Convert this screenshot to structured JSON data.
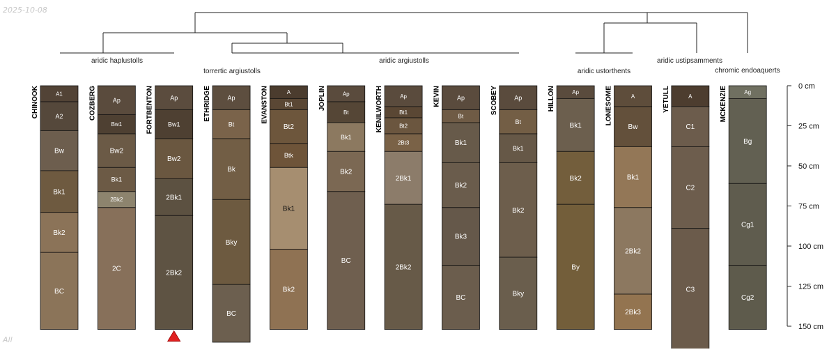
{
  "date_label": "2025-10-08",
  "corner_label": "All",
  "depth_unit": "cm",
  "depth_ticks": [
    0,
    25,
    50,
    75,
    100,
    125,
    150
  ],
  "colors": {
    "line": "#222222",
    "marker": "#e02020",
    "text_light": "#ffffff",
    "text_dark": "#111111"
  },
  "group_labels": [
    "aridic haplustolls",
    "torrertic argiustolls",
    "aridic argiustolls",
    "aridic ustorthents",
    "aridic ustipsamments",
    "chromic endoaquerts"
  ],
  "marker_profile": "FORTBENTON",
  "profiles": [
    {
      "name": "CHINOOK",
      "horizons": [
        {
          "name": "A1",
          "top": 0,
          "bottom": 10,
          "color": "#524336"
        },
        {
          "name": "A2",
          "top": 10,
          "bottom": 28,
          "color": "#55483b"
        },
        {
          "name": "Bw",
          "top": 28,
          "bottom": 53,
          "color": "#6d5e4e"
        },
        {
          "name": "Bk1",
          "top": 53,
          "bottom": 79,
          "color": "#6e5a40"
        },
        {
          "name": "Bk2",
          "top": 79,
          "bottom": 104,
          "color": "#8b7358"
        },
        {
          "name": "BC",
          "top": 104,
          "bottom": 152,
          "color": "#8b7459"
        }
      ]
    },
    {
      "name": "COZBERG",
      "horizons": [
        {
          "name": "Ap",
          "top": 0,
          "bottom": 18,
          "color": "#5a4b3d"
        },
        {
          "name": "Bw1",
          "top": 18,
          "bottom": 30,
          "color": "#4e4032"
        },
        {
          "name": "Bw2",
          "top": 30,
          "bottom": 51,
          "color": "#6b5a46"
        },
        {
          "name": "Bk1",
          "top": 51,
          "bottom": 66,
          "color": "#6c5a45"
        },
        {
          "name": "2Bk2",
          "top": 66,
          "bottom": 76,
          "color": "#8d846e"
        },
        {
          "name": "2C",
          "top": 76,
          "bottom": 152,
          "color": "#87705a"
        }
      ]
    },
    {
      "name": "FORTBENTON",
      "horizons": [
        {
          "name": "Ap",
          "top": 0,
          "bottom": 15,
          "color": "#5b4c3e"
        },
        {
          "name": "Bw1",
          "top": 15,
          "bottom": 33,
          "color": "#4e4032"
        },
        {
          "name": "Bw2",
          "top": 33,
          "bottom": 58,
          "color": "#6a5740"
        },
        {
          "name": "2Bk1",
          "top": 58,
          "bottom": 81,
          "color": "#5c5141"
        },
        {
          "name": "2Bk2",
          "top": 81,
          "bottom": 152,
          "color": "#5e5343"
        }
      ]
    },
    {
      "name": "ETHRIDGE",
      "horizons": [
        {
          "name": "Ap",
          "top": 0,
          "bottom": 15,
          "color": "#5d4e3f"
        },
        {
          "name": "Bt",
          "top": 15,
          "bottom": 33,
          "color": "#7a634a"
        },
        {
          "name": "Bk",
          "top": 33,
          "bottom": 71,
          "color": "#725e45"
        },
        {
          "name": "Bky",
          "top": 71,
          "bottom": 124,
          "color": "#6d5a40"
        },
        {
          "name": "BC",
          "top": 124,
          "bottom": 160,
          "color": "#6c5f4f"
        }
      ]
    },
    {
      "name": "EVANSTON",
      "horizons": [
        {
          "name": "A",
          "top": 0,
          "bottom": 8,
          "color": "#4b3c2e"
        },
        {
          "name": "Bt1",
          "top": 8,
          "bottom": 15,
          "color": "#5a4734"
        },
        {
          "name": "Bt2",
          "top": 15,
          "bottom": 36,
          "color": "#6d563c"
        },
        {
          "name": "Btk",
          "top": 36,
          "bottom": 51,
          "color": "#6e5439"
        },
        {
          "name": "Bk1",
          "top": 51,
          "bottom": 102,
          "color": "#a68e70"
        },
        {
          "name": "Bk2",
          "top": 102,
          "bottom": 152,
          "color": "#8f7253"
        }
      ]
    },
    {
      "name": "JOPLIN",
      "horizons": [
        {
          "name": "Ap",
          "top": 0,
          "bottom": 10,
          "color": "#5a4b3d"
        },
        {
          "name": "Bt",
          "top": 10,
          "bottom": 23,
          "color": "#554636"
        },
        {
          "name": "Bk1",
          "top": 23,
          "bottom": 41,
          "color": "#8c7960"
        },
        {
          "name": "Bk2",
          "top": 41,
          "bottom": 66,
          "color": "#7b6853"
        },
        {
          "name": "BC",
          "top": 66,
          "bottom": 152,
          "color": "#6f5f4f"
        }
      ]
    },
    {
      "name": "KENILWORTH",
      "horizons": [
        {
          "name": "Ap",
          "top": 0,
          "bottom": 13,
          "color": "#5a4b3d"
        },
        {
          "name": "Bt1",
          "top": 13,
          "bottom": 20,
          "color": "#5a4734"
        },
        {
          "name": "Bt2",
          "top": 20,
          "bottom": 30,
          "color": "#6b563f"
        },
        {
          "name": "2Bt3",
          "top": 30,
          "bottom": 41,
          "color": "#7a6247"
        },
        {
          "name": "2Bk1",
          "top": 41,
          "bottom": 74,
          "color": "#8c7c6a"
        },
        {
          "name": "2Bk2",
          "top": 74,
          "bottom": 152,
          "color": "#675a48"
        }
      ]
    },
    {
      "name": "KEVIN",
      "horizons": [
        {
          "name": "Ap",
          "top": 0,
          "bottom": 15,
          "color": "#5a4b3d"
        },
        {
          "name": "Bt",
          "top": 15,
          "bottom": 23,
          "color": "#6f5b45"
        },
        {
          "name": "Bk1",
          "top": 23,
          "bottom": 48,
          "color": "#675a4a"
        },
        {
          "name": "Bk2",
          "top": 48,
          "bottom": 76,
          "color": "#6a5c4c"
        },
        {
          "name": "Bk3",
          "top": 76,
          "bottom": 112,
          "color": "#65584a"
        },
        {
          "name": "BC",
          "top": 112,
          "bottom": 152,
          "color": "#6b5d4d"
        }
      ]
    },
    {
      "name": "SCOBEY",
      "horizons": [
        {
          "name": "Ap",
          "top": 0,
          "bottom": 15,
          "color": "#5a4b3d"
        },
        {
          "name": "Bt",
          "top": 15,
          "bottom": 30,
          "color": "#735e45"
        },
        {
          "name": "Bk1",
          "top": 30,
          "bottom": 48,
          "color": "#665847"
        },
        {
          "name": "Bk2",
          "top": 48,
          "bottom": 107,
          "color": "#6d5e4c"
        },
        {
          "name": "Bky",
          "top": 107,
          "bottom": 152,
          "color": "#6a5e4d"
        }
      ]
    },
    {
      "name": "HILLON",
      "horizons": [
        {
          "name": "Ap",
          "top": 0,
          "bottom": 8,
          "color": "#5a4b3d"
        },
        {
          "name": "Bk1",
          "top": 8,
          "bottom": 41,
          "color": "#6c5f4e"
        },
        {
          "name": "Bk2",
          "top": 41,
          "bottom": 74,
          "color": "#735e3c"
        },
        {
          "name": "By",
          "top": 74,
          "bottom": 152,
          "color": "#735e3a"
        }
      ]
    },
    {
      "name": "LONESOME",
      "horizons": [
        {
          "name": "A",
          "top": 0,
          "bottom": 13,
          "color": "#5e4d3b"
        },
        {
          "name": "Bw",
          "top": 13,
          "bottom": 38,
          "color": "#63503b"
        },
        {
          "name": "Bk1",
          "top": 38,
          "bottom": 76,
          "color": "#937757"
        },
        {
          "name": "2Bk2",
          "top": 76,
          "bottom": 130,
          "color": "#8c7860"
        },
        {
          "name": "2Bk3",
          "top": 130,
          "bottom": 152,
          "color": "#937450"
        }
      ]
    },
    {
      "name": "YETULL",
      "horizons": [
        {
          "name": "A",
          "top": 0,
          "bottom": 13,
          "color": "#4d3d2f"
        },
        {
          "name": "C1",
          "top": 13,
          "bottom": 38,
          "color": "#6c5c4c"
        },
        {
          "name": "C2",
          "top": 38,
          "bottom": 89,
          "color": "#6d5d4d"
        },
        {
          "name": "C3",
          "top": 89,
          "bottom": 165,
          "color": "#6b5b4b"
        }
      ]
    },
    {
      "name": "MCKENZIE",
      "horizons": [
        {
          "name": "Ag",
          "top": 0,
          "bottom": 8,
          "color": "#707061"
        },
        {
          "name": "Bg",
          "top": 8,
          "bottom": 61,
          "color": "#626052"
        },
        {
          "name": "Cg1",
          "top": 61,
          "bottom": 112,
          "color": "#5f5c4e"
        },
        {
          "name": "Cg2",
          "top": 112,
          "bottom": 152,
          "color": "#5e5b4c"
        }
      ]
    }
  ]
}
